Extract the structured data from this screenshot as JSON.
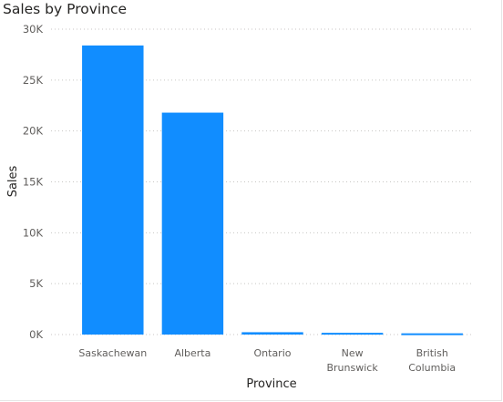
{
  "chart_data": {
    "type": "bar",
    "title": "Sales by Province",
    "xlabel": "Province",
    "ylabel": "Sales",
    "categories": [
      [
        "Saskachewan"
      ],
      [
        "Alberta"
      ],
      [
        "Ontario"
      ],
      [
        "New",
        "Brunswick"
      ],
      [
        "British",
        "Columbia"
      ]
    ],
    "values": [
      28400,
      21800,
      230,
      170,
      120
    ],
    "ylim": [
      0,
      30000
    ],
    "yticks": [
      0,
      5000,
      10000,
      15000,
      20000,
      25000,
      30000
    ],
    "ytick_labels": [
      "0K",
      "5K",
      "10K",
      "15K",
      "20K",
      "25K",
      "30K"
    ],
    "grid": true,
    "bar_color": "#118DFF"
  }
}
